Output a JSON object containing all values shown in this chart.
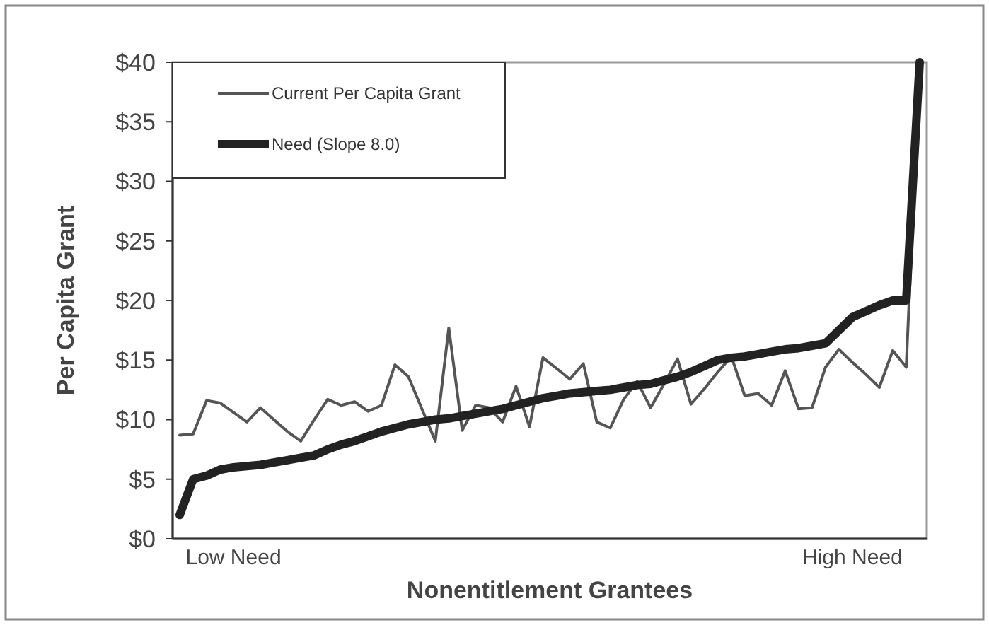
{
  "chart_data": {
    "type": "line",
    "xlabel": "Nonentitlement Grantees",
    "ylabel": "Per Capita Grant",
    "categories": [
      null,
      null,
      null,
      null,
      "Low Need",
      null,
      null,
      null,
      null,
      null,
      null,
      null,
      null,
      null,
      null,
      null,
      null,
      null,
      null,
      null,
      null,
      null,
      null,
      null,
      null,
      null,
      null,
      null,
      null,
      null,
      null,
      null,
      null,
      null,
      null,
      null,
      null,
      null,
      null,
      null,
      null,
      null,
      null,
      null,
      null,
      null,
      null,
      null,
      null,
      null,
      "High Need",
      null,
      null,
      null,
      null,
      null
    ],
    "series": [
      {
        "name": "Current Per Capita Grant",
        "color": "#555555",
        "values": [
          8.7,
          8.8,
          11.6,
          11.4,
          10.6,
          9.8,
          11.0,
          10.0,
          9.0,
          8.2,
          10.0,
          11.7,
          11.2,
          11.5,
          10.7,
          11.2,
          14.6,
          13.6,
          10.9,
          8.2,
          17.7,
          9.1,
          11.2,
          11.0,
          9.8,
          12.8,
          9.4,
          15.2,
          14.3,
          13.4,
          14.7,
          9.8,
          9.3,
          11.7,
          13.2,
          11.0,
          13.0,
          15.1,
          11.3,
          12.6,
          14.0,
          15.3,
          12.0,
          12.2,
          11.2,
          14.1,
          10.9,
          11.0,
          14.4,
          15.9,
          14.8,
          13.8,
          12.7,
          15.8,
          14.4,
          40
        ]
      },
      {
        "name": "Need (Slope 8.0)",
        "color": "#222222",
        "values": [
          2.0,
          5.0,
          5.3,
          5.8,
          6.0,
          6.1,
          6.2,
          6.4,
          6.6,
          6.8,
          7.0,
          7.5,
          7.9,
          8.2,
          8.6,
          9.0,
          9.3,
          9.6,
          9.8,
          10.0,
          10.1,
          10.3,
          10.5,
          10.7,
          10.9,
          11.2,
          11.5,
          11.8,
          12.0,
          12.2,
          12.3,
          12.4,
          12.5,
          12.7,
          12.9,
          13.0,
          13.3,
          13.6,
          14.0,
          14.5,
          15.0,
          15.2,
          15.3,
          15.5,
          15.7,
          15.9,
          16.0,
          16.2,
          16.4,
          17.5,
          18.6,
          19.1,
          19.6,
          20.0,
          20.0,
          40
        ]
      }
    ],
    "ylim": [
      0,
      40
    ],
    "yticks": [
      {
        "value": 0,
        "label": "$0"
      },
      {
        "value": 5,
        "label": "$5"
      },
      {
        "value": 10,
        "label": "$10"
      },
      {
        "value": 15,
        "label": "$15"
      },
      {
        "value": 20,
        "label": "$20"
      },
      {
        "value": 25,
        "label": "$25"
      },
      {
        "value": 30,
        "label": "$30"
      },
      {
        "value": 35,
        "label": "$35"
      },
      {
        "value": 40,
        "label": "$40"
      }
    ],
    "legend": "top left"
  }
}
